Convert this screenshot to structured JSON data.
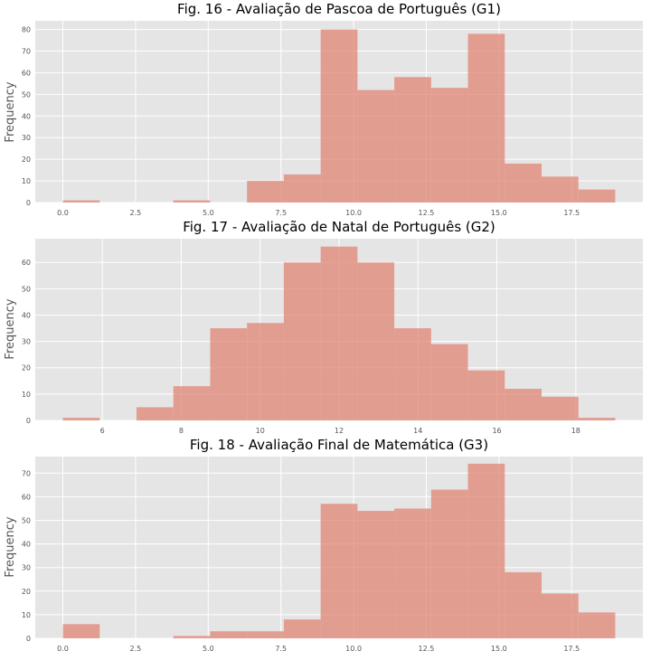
{
  "chart_data": [
    {
      "type": "bar",
      "title": "Fig. 16 - Avaliação de Pascoa de Português (G1)",
      "xlabel": "",
      "ylabel": "Frequency",
      "bin_edges": [
        0.0,
        1.2667,
        2.5333,
        3.8,
        5.0667,
        6.3333,
        7.6,
        8.8667,
        10.1333,
        11.4,
        12.6667,
        13.9333,
        15.2,
        16.4667,
        17.7333,
        19.0
      ],
      "values": [
        1,
        0,
        0,
        1,
        0,
        10,
        13,
        80,
        52,
        58,
        53,
        78,
        18,
        12,
        6
      ],
      "xlim": [
        -0.95,
        19.95
      ],
      "ylim": [
        0,
        84
      ],
      "xticks": [
        0.0,
        2.5,
        5.0,
        7.5,
        10.0,
        12.5,
        15.0,
        17.5
      ],
      "xtick_labels": [
        "0.0",
        "2.5",
        "5.0",
        "7.5",
        "10.0",
        "12.5",
        "15.0",
        "17.5"
      ],
      "yticks": [
        0,
        10,
        20,
        30,
        40,
        50,
        60,
        70,
        80
      ],
      "ytick_labels": [
        "0",
        "10",
        "20",
        "30",
        "40",
        "50",
        "60",
        "70",
        "80"
      ],
      "grid": true
    },
    {
      "type": "bar",
      "title": "Fig. 17 - Avaliação de Natal de Português (G2)",
      "xlabel": "",
      "ylabel": "Frequency",
      "bin_edges": [
        5.0,
        5.9333,
        6.8667,
        7.8,
        8.7333,
        9.6667,
        10.6,
        11.5333,
        12.4667,
        13.4,
        14.3333,
        15.2667,
        16.2,
        17.1333,
        18.0667,
        19.0
      ],
      "values": [
        1,
        0,
        5,
        13,
        35,
        37,
        60,
        66,
        60,
        35,
        29,
        19,
        12,
        9,
        1
      ],
      "xlim": [
        4.3,
        19.7
      ],
      "ylim": [
        0,
        69
      ],
      "xticks": [
        6,
        8,
        10,
        12,
        14,
        16,
        18
      ],
      "xtick_labels": [
        "6",
        "8",
        "10",
        "12",
        "14",
        "16",
        "18"
      ],
      "yticks": [
        0,
        10,
        20,
        30,
        40,
        50,
        60
      ],
      "ytick_labels": [
        "0",
        "10",
        "20",
        "30",
        "40",
        "50",
        "60"
      ],
      "grid": true
    },
    {
      "type": "bar",
      "title": "Fig. 18 - Avaliação Final de Matemática (G3)",
      "xlabel": "",
      "ylabel": "Frequency",
      "bin_edges": [
        0.0,
        1.2667,
        2.5333,
        3.8,
        5.0667,
        6.3333,
        7.6,
        8.8667,
        10.1333,
        11.4,
        12.6667,
        13.9333,
        15.2,
        16.4667,
        17.7333,
        19.0
      ],
      "values": [
        6,
        0,
        0,
        1,
        3,
        3,
        8,
        57,
        54,
        55,
        63,
        74,
        28,
        19,
        11
      ],
      "xlim": [
        -0.95,
        19.95
      ],
      "ylim": [
        0,
        77
      ],
      "xticks": [
        0.0,
        2.5,
        5.0,
        7.5,
        10.0,
        12.5,
        15.0,
        17.5
      ],
      "xtick_labels": [
        "0.0",
        "2.5",
        "5.0",
        "7.5",
        "10.0",
        "12.5",
        "15.0",
        "17.5"
      ],
      "yticks": [
        0,
        10,
        20,
        30,
        40,
        50,
        60,
        70
      ],
      "ytick_labels": [
        "0",
        "10",
        "20",
        "30",
        "40",
        "50",
        "60",
        "70"
      ],
      "grid": true
    }
  ]
}
